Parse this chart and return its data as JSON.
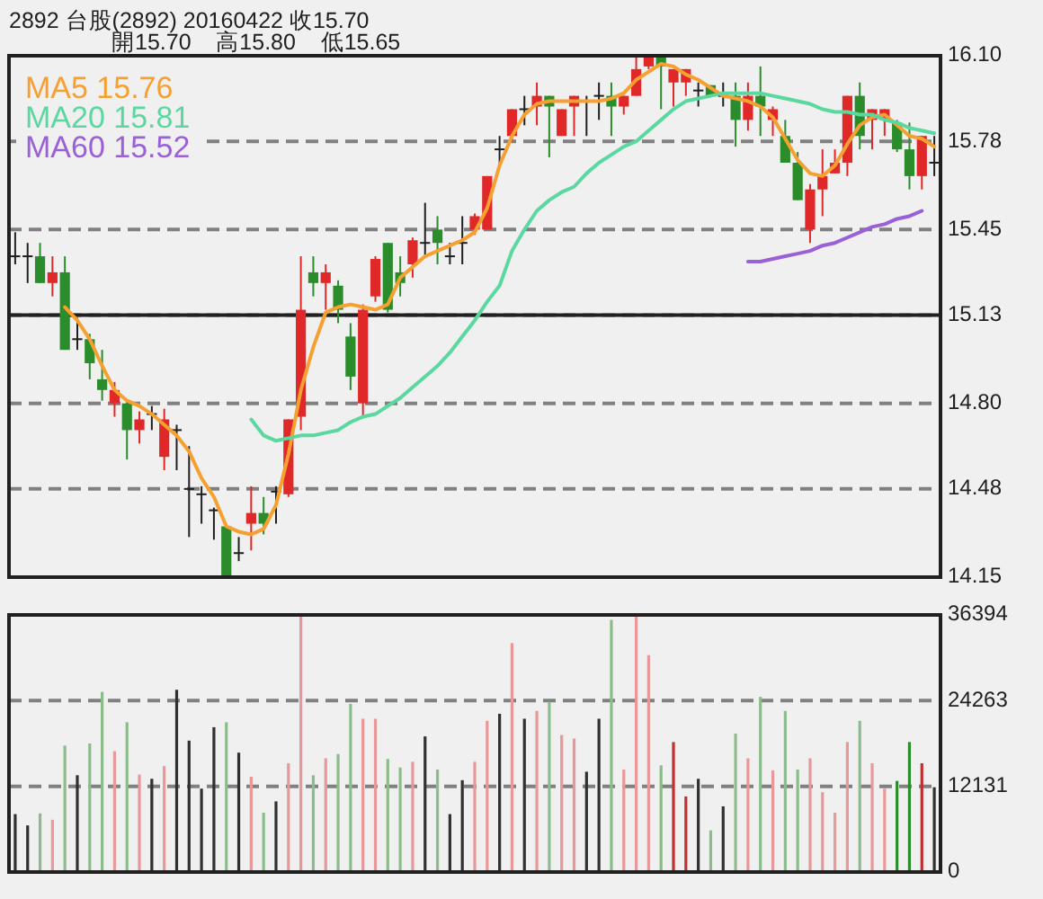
{
  "chart_data": [
    {
      "type": "candlestick",
      "title": "2892 台股(2892) 20160422 收15.70",
      "subtitle": "開15.70    高15.80    低15.65",
      "categories": [
        null,
        null,
        null,
        null,
        null,
        null,
        null,
        null,
        null,
        null,
        null,
        null,
        null,
        null,
        null,
        null,
        null,
        null,
        null,
        null,
        null,
        null,
        null,
        null,
        null,
        null,
        null,
        null,
        null,
        null,
        null,
        null,
        null,
        null,
        null,
        null,
        null,
        null,
        null,
        null,
        null,
        null,
        null,
        null,
        null,
        null,
        null,
        null,
        null,
        null,
        null,
        null,
        null,
        null,
        null,
        null,
        null,
        null,
        null,
        null,
        null,
        null,
        null,
        null,
        null,
        null,
        null,
        null,
        null,
        null,
        null,
        null,
        null,
        null,
        null
      ],
      "ohlc": [
        [
          15.35,
          15.44,
          15.32,
          15.35
        ],
        [
          15.35,
          15.4,
          15.25,
          15.35
        ],
        [
          15.35,
          15.4,
          15.25,
          15.25
        ],
        [
          15.25,
          15.35,
          15.2,
          15.29
        ],
        [
          15.29,
          15.35,
          15.0,
          15.0
        ],
        [
          15.04,
          15.12,
          15.0,
          15.04
        ],
        [
          15.04,
          15.06,
          14.89,
          14.95
        ],
        [
          14.89,
          15.0,
          14.81,
          14.85
        ],
        [
          14.8,
          14.88,
          14.75,
          14.85
        ],
        [
          14.8,
          14.81,
          14.59,
          14.7
        ],
        [
          14.7,
          14.77,
          14.65,
          14.74
        ],
        [
          14.76,
          14.79,
          14.7,
          14.76
        ],
        [
          14.6,
          14.78,
          14.55,
          14.74
        ],
        [
          14.7,
          14.72,
          14.55,
          14.7
        ],
        [
          14.48,
          14.64,
          14.3,
          14.48
        ],
        [
          14.46,
          14.49,
          14.35,
          14.46
        ],
        [
          14.4,
          14.41,
          14.29,
          14.4
        ],
        [
          14.34,
          14.34,
          14.15,
          14.15
        ],
        [
          14.24,
          14.3,
          14.21,
          14.24
        ],
        [
          14.35,
          14.49,
          14.25,
          14.39
        ],
        [
          14.39,
          14.45,
          14.31,
          14.35
        ],
        [
          14.47,
          14.49,
          14.35,
          14.47
        ],
        [
          14.46,
          14.74,
          14.45,
          14.74
        ],
        [
          14.75,
          15.35,
          14.7,
          15.15
        ],
        [
          15.29,
          15.35,
          15.2,
          15.25
        ],
        [
          15.25,
          15.32,
          15.15,
          15.29
        ],
        [
          15.24,
          15.26,
          15.1,
          15.15
        ],
        [
          15.05,
          15.1,
          14.85,
          14.9
        ],
        [
          14.8,
          15.17,
          14.75,
          15.15
        ],
        [
          15.2,
          15.35,
          15.18,
          15.34
        ],
        [
          15.4,
          15.4,
          15.14,
          15.15
        ],
        [
          15.29,
          15.35,
          15.2,
          15.25
        ],
        [
          15.32,
          15.42,
          15.27,
          15.41
        ],
        [
          15.4,
          15.55,
          15.35,
          15.4
        ],
        [
          15.45,
          15.5,
          15.32,
          15.4
        ],
        [
          15.35,
          15.4,
          15.32,
          15.35
        ],
        [
          15.4,
          15.5,
          15.32,
          15.4
        ],
        [
          15.45,
          15.51,
          15.43,
          15.5
        ],
        [
          15.45,
          15.65,
          15.45,
          15.65
        ],
        [
          15.75,
          15.8,
          15.69,
          15.75
        ],
        [
          15.8,
          15.9,
          15.78,
          15.9
        ],
        [
          15.9,
          15.95,
          15.84,
          15.9
        ],
        [
          15.91,
          16.0,
          15.84,
          15.95
        ],
        [
          15.95,
          15.95,
          15.72,
          15.91
        ],
        [
          15.8,
          15.9,
          15.8,
          15.9
        ],
        [
          15.91,
          15.95,
          15.8,
          15.95
        ],
        [
          15.93,
          15.95,
          15.8,
          15.93
        ],
        [
          15.95,
          16.0,
          15.86,
          15.95
        ],
        [
          15.95,
          16.0,
          15.8,
          15.91
        ],
        [
          15.91,
          15.95,
          15.88,
          15.95
        ],
        [
          15.95,
          16.1,
          15.95,
          16.05
        ],
        [
          16.06,
          16.1,
          16.05,
          16.1
        ],
        [
          16.1,
          16.1,
          15.9,
          16.06
        ],
        [
          16.0,
          16.05,
          15.91,
          16.05
        ],
        [
          16.0,
          16.05,
          15.95,
          16.05
        ],
        [
          15.97,
          16.0,
          15.91,
          15.97
        ],
        [
          15.99,
          15.99,
          15.95,
          15.95
        ],
        [
          15.95,
          16.0,
          15.91,
          15.95
        ],
        [
          15.95,
          16.0,
          15.76,
          15.86
        ],
        [
          15.86,
          16.0,
          15.82,
          15.95
        ],
        [
          15.95,
          16.06,
          15.8,
          15.91
        ],
        [
          15.86,
          15.91,
          15.8,
          15.9
        ],
        [
          15.8,
          15.86,
          15.7,
          15.7
        ],
        [
          15.7,
          15.74,
          15.56,
          15.56
        ],
        [
          15.45,
          15.62,
          15.4,
          15.6
        ],
        [
          15.6,
          15.75,
          15.5,
          15.65
        ],
        [
          15.66,
          15.75,
          15.66,
          15.7
        ],
        [
          15.7,
          15.95,
          15.65,
          15.95
        ],
        [
          15.95,
          16.0,
          15.75,
          15.8
        ],
        [
          15.86,
          15.9,
          15.75,
          15.9
        ],
        [
          15.86,
          15.9,
          15.8,
          15.9
        ],
        [
          15.85,
          15.86,
          15.74,
          15.75
        ],
        [
          15.75,
          15.85,
          15.6,
          15.65
        ],
        [
          15.65,
          15.8,
          15.6,
          15.8
        ],
        [
          15.7,
          15.8,
          15.65,
          15.7
        ]
      ],
      "colors": [
        "#202020",
        "#202020",
        "#2a8c2a",
        "#e02828",
        "#2a8c2a",
        "#202020",
        "#2a8c2a",
        "#2a8c2a",
        "#e02828",
        "#2a8c2a",
        "#e02828",
        "#202020",
        "#e02828",
        "#202020",
        "#202020",
        "#202020",
        "#202020",
        "#2a8c2a",
        "#202020",
        "#e02828",
        "#2a8c2a",
        "#202020",
        "#e02828",
        "#e02828",
        "#2a8c2a",
        "#e02828",
        "#2a8c2a",
        "#2a8c2a",
        "#e02828",
        "#e02828",
        "#2a8c2a",
        "#2a8c2a",
        "#e02828",
        "#202020",
        "#2a8c2a",
        "#202020",
        "#202020",
        "#e02828",
        "#e02828",
        "#202020",
        "#e02828",
        "#202020",
        "#e02828",
        "#2a8c2a",
        "#e02828",
        "#e02828",
        "#202020",
        "#202020",
        "#2a8c2a",
        "#e02828",
        "#e02828",
        "#e02828",
        "#2a8c2a",
        "#e02828",
        "#e02828",
        "#202020",
        "#2a8c2a",
        "#202020",
        "#2a8c2a",
        "#e02828",
        "#2a8c2a",
        "#e02828",
        "#2a8c2a",
        "#2a8c2a",
        "#e02828",
        "#e02828",
        "#e02828",
        "#e02828",
        "#2a8c2a",
        "#e02828",
        "#e02828",
        "#2a8c2a",
        "#2a8c2a",
        "#e02828",
        "#202020"
      ],
      "series": [
        {
          "name": "MA5 15.76",
          "color": "#f5a030",
          "type": "line",
          "values": [
            null,
            null,
            null,
            null,
            15.16,
            15.11,
            15.04,
            14.94,
            14.85,
            14.81,
            14.79,
            14.76,
            14.72,
            14.68,
            14.62,
            14.52,
            14.45,
            14.34,
            14.32,
            14.31,
            14.33,
            14.42,
            14.61,
            14.85,
            15.01,
            15.14,
            15.16,
            15.17,
            15.16,
            15.15,
            15.17,
            15.27,
            15.31,
            15.35,
            15.37,
            15.39,
            15.41,
            15.44,
            15.53,
            15.69,
            15.8,
            15.88,
            15.92,
            15.93,
            15.93,
            15.93,
            15.93,
            15.93,
            15.94,
            15.96,
            16.01,
            16.04,
            16.07,
            16.06,
            16.03,
            16.01,
            15.98,
            15.95,
            15.94,
            15.93,
            15.91,
            15.87,
            15.79,
            15.71,
            15.66,
            15.65,
            15.69,
            15.77,
            15.84,
            15.87,
            15.88,
            15.84,
            15.8,
            15.79,
            15.76
          ]
        },
        {
          "name": "MA20 15.81",
          "color": "#5ad8a0",
          "type": "line",
          "values": [
            null,
            null,
            null,
            null,
            null,
            null,
            null,
            null,
            null,
            null,
            null,
            null,
            null,
            null,
            null,
            null,
            null,
            null,
            null,
            14.74,
            14.68,
            14.66,
            14.67,
            14.68,
            14.68,
            14.69,
            14.7,
            14.73,
            14.75,
            14.76,
            14.79,
            14.82,
            14.86,
            14.9,
            14.94,
            14.99,
            15.05,
            15.11,
            15.18,
            15.24,
            15.37,
            15.45,
            15.52,
            15.56,
            15.59,
            15.61,
            15.66,
            15.7,
            15.73,
            15.76,
            15.78,
            15.82,
            15.86,
            15.9,
            15.93,
            15.94,
            15.95,
            15.96,
            15.96,
            15.96,
            15.96,
            15.95,
            15.94,
            15.93,
            15.92,
            15.9,
            15.89,
            15.89,
            15.88,
            15.88,
            15.86,
            15.85,
            15.83,
            15.82,
            15.81
          ]
        },
        {
          "name": "MA60 15.52",
          "color": "#9a60d8",
          "type": "line",
          "values": [
            null,
            null,
            null,
            null,
            null,
            null,
            null,
            null,
            null,
            null,
            null,
            null,
            null,
            null,
            null,
            null,
            null,
            null,
            null,
            null,
            null,
            null,
            null,
            null,
            null,
            null,
            null,
            null,
            null,
            null,
            null,
            null,
            null,
            null,
            null,
            null,
            null,
            null,
            null,
            null,
            null,
            null,
            null,
            null,
            null,
            null,
            null,
            null,
            null,
            null,
            null,
            null,
            null,
            null,
            null,
            null,
            null,
            null,
            null,
            15.33,
            15.33,
            15.34,
            15.35,
            15.36,
            15.37,
            15.39,
            15.4,
            15.42,
            15.44,
            15.46,
            15.47,
            15.49,
            15.5,
            15.52,
            null
          ]
        }
      ],
      "ylim": [
        14.15,
        16.1
      ],
      "yticks": [
        14.15,
        14.48,
        {
          "value": 14.8,
          "label": "14.80"
        },
        15.13,
        15.45,
        15.78,
        {
          "value": 16.1,
          "label": "16.10"
        }
      ],
      "grid": "y",
      "ref_lines": [
        {
          "axis": "y",
          "value": 15.13,
          "color": "#202020",
          "line_style": "solid"
        }
      ],
      "tick_labels": "y",
      "legend": "top left"
    },
    {
      "type": "bar",
      "categories": [
        null,
        null,
        null,
        null,
        null,
        null,
        null,
        null,
        null,
        null,
        null,
        null,
        null,
        null,
        null,
        null,
        null,
        null,
        null,
        null,
        null,
        null,
        null,
        null,
        null,
        null,
        null,
        null,
        null,
        null,
        null,
        null,
        null,
        null,
        null,
        null,
        null,
        null,
        null,
        null,
        null,
        null,
        null,
        null,
        null,
        null,
        null,
        null,
        null,
        null,
        null,
        null,
        null,
        null,
        null,
        null,
        null,
        null,
        null,
        null,
        null,
        null,
        null,
        null,
        null,
        null,
        null,
        null,
        null,
        null,
        null,
        null,
        null,
        null,
        null
      ],
      "values": [
        8200,
        6600,
        8300,
        7400,
        17900,
        13700,
        18200,
        25500,
        17100,
        21200,
        13800,
        13200,
        15000,
        25800,
        18600,
        11800,
        20500,
        21200,
        16900,
        13500,
        8400,
        10000,
        15400,
        36200,
        13700,
        16100,
        16700,
        23800,
        21700,
        21700,
        16000,
        14800,
        15600,
        19200,
        14500,
        8200,
        13000,
        15600,
        21400,
        22400,
        32400,
        21700,
        22800,
        24100,
        19400,
        18900,
        14200,
        21700,
        35700,
        14500,
        36300,
        30700,
        15100,
        18400,
        10700,
        13200,
        5900,
        9300,
        19600,
        16100,
        24800,
        14400,
        22800,
        14500,
        16100,
        11300,
        8400,
        18400,
        21400,
        15400,
        11800,
        12900,
        18400,
        15400,
        12000
      ],
      "colors": [
        "#303030",
        "#303030",
        "#8cbc8c",
        "#e89898",
        "#8cbc8c",
        "#303030",
        "#8cbc8c",
        "#8cbc8c",
        "#e89898",
        "#8cbc8c",
        "#e89898",
        "#303030",
        "#e89898",
        "#303030",
        "#303030",
        "#303030",
        "#303030",
        "#8cbc8c",
        "#303030",
        "#e89898",
        "#8cbc8c",
        "#303030",
        "#e89898",
        "#e89898",
        "#8cbc8c",
        "#e89898",
        "#8cbc8c",
        "#8cbc8c",
        "#e89898",
        "#e89898",
        "#8cbc8c",
        "#8cbc8c",
        "#e89898",
        "#303030",
        "#8cbc8c",
        "#303030",
        "#303030",
        "#e89898",
        "#e89898",
        "#303030",
        "#e89898",
        "#303030",
        "#e89898",
        "#8cbc8c",
        "#e89898",
        "#e89898",
        "#303030",
        "#303030",
        "#8cbc8c",
        "#e89898",
        "#e89898",
        "#e89898",
        "#8cbc8c",
        "#c03030",
        "#c03030",
        "#303030",
        "#8cbc8c",
        "#303030",
        "#8cbc8c",
        "#e89898",
        "#8cbc8c",
        "#e89898",
        "#8cbc8c",
        "#8cbc8c",
        "#e89898",
        "#e89898",
        "#e89898",
        "#e89898",
        "#8cbc8c",
        "#e89898",
        "#e89898",
        "#2a8c2a",
        "#2a8c2a",
        "#c03030",
        "#303030"
      ],
      "ylim": [
        0,
        36394
      ],
      "yticks": [
        0,
        12131,
        24263,
        36394
      ],
      "grid": "y",
      "tick_labels": "y"
    }
  ]
}
